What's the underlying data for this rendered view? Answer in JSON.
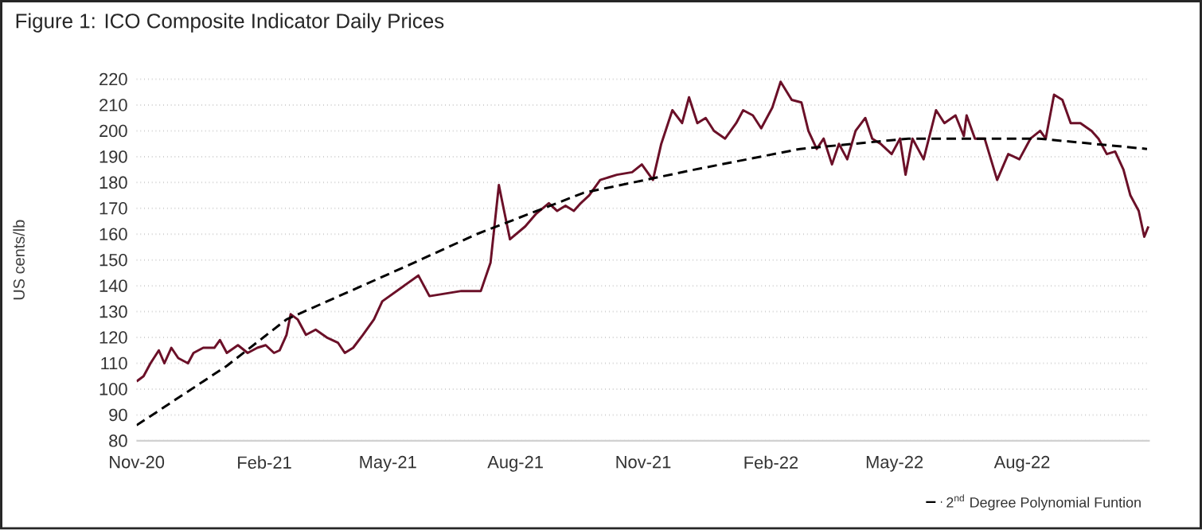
{
  "chart_data": {
    "type": "line",
    "title": "Figure 1: ICO Composite Indicator Daily Prices",
    "ylabel": "US cents/lb",
    "xlim": [
      "2020-11-01",
      "2022-11-01"
    ],
    "xticks": [
      {
        "value": "2020-11-01",
        "label": "Nov-20"
      },
      {
        "value": "2021-02-01",
        "label": "Feb-21"
      },
      {
        "value": "2021-05-01",
        "label": "May-21"
      },
      {
        "value": "2021-08-01",
        "label": "Aug-21"
      },
      {
        "value": "2021-11-01",
        "label": "Nov-21"
      },
      {
        "value": "2022-02-01",
        "label": "Feb-22"
      },
      {
        "value": "2022-05-01",
        "label": "May-22"
      },
      {
        "value": "2022-08-01",
        "label": "Aug-22"
      }
    ],
    "ylim": [
      80,
      220
    ],
    "yticks": [
      80,
      90,
      100,
      110,
      120,
      130,
      140,
      150,
      160,
      170,
      180,
      190,
      200,
      210,
      220
    ],
    "grid": "y",
    "legend": "bottom right",
    "series": [
      {
        "color": "#6b1028",
        "line_style": "solid",
        "x": [
          "2020-11-01",
          "2020-11-06",
          "2020-11-11",
          "2020-11-17",
          "2020-11-21",
          "2020-11-26",
          "2020-12-01",
          "2020-12-08",
          "2020-12-12",
          "2020-12-19",
          "2020-12-27",
          "2020-12-31",
          "2021-01-05",
          "2021-01-13",
          "2021-01-20",
          "2021-01-27",
          "2021-02-02",
          "2021-02-08",
          "2021-02-12",
          "2021-02-17",
          "2021-02-20",
          "2021-02-25",
          "2021-03-03",
          "2021-03-10",
          "2021-03-18",
          "2021-03-26",
          "2021-03-31",
          "2021-04-06",
          "2021-04-13",
          "2021-04-21",
          "2021-04-27",
          "2021-05-23",
          "2021-05-31",
          "2021-06-23",
          "2021-07-07",
          "2021-07-14",
          "2021-07-20",
          "2021-07-23",
          "2021-07-28",
          "2021-08-08",
          "2021-08-16",
          "2021-08-25",
          "2021-08-31",
          "2021-09-06",
          "2021-09-12",
          "2021-09-17",
          "2021-09-23",
          "2021-10-01",
          "2021-10-13",
          "2021-10-24",
          "2021-10-31",
          "2021-11-08",
          "2021-11-14",
          "2021-11-22",
          "2021-11-29",
          "2021-12-04",
          "2021-12-10",
          "2021-12-16",
          "2021-12-22",
          "2021-12-30",
          "2022-01-07",
          "2022-01-12",
          "2022-01-19",
          "2022-01-25",
          "2022-02-02",
          "2022-02-08",
          "2022-02-16",
          "2022-02-23",
          "2022-02-28",
          "2022-03-06",
          "2022-03-11",
          "2022-03-17",
          "2022-03-22",
          "2022-03-28",
          "2022-04-03",
          "2022-04-10",
          "2022-04-15",
          "2022-04-21",
          "2022-04-29",
          "2022-05-05",
          "2022-05-09",
          "2022-05-14",
          "2022-05-22",
          "2022-05-31",
          "2022-06-06",
          "2022-06-14",
          "2022-06-20",
          "2022-06-22",
          "2022-06-28",
          "2022-07-05",
          "2022-07-14",
          "2022-07-22",
          "2022-07-30",
          "2022-08-07",
          "2022-08-14",
          "2022-08-18",
          "2022-08-24",
          "2022-08-30",
          "2022-09-05",
          "2022-09-12",
          "2022-09-20",
          "2022-09-25",
          "2022-10-01",
          "2022-10-07",
          "2022-10-13",
          "2022-10-18",
          "2022-10-24",
          "2022-10-28",
          "2022-10-31"
        ],
        "values": [
          103,
          105,
          110,
          115,
          110,
          116,
          112,
          110,
          114,
          116,
          116,
          119,
          114,
          117,
          114,
          116,
          117,
          114,
          115,
          121,
          129,
          127,
          121,
          123,
          120,
          118,
          114,
          116,
          121,
          127,
          134,
          144,
          136,
          138,
          138,
          149,
          179,
          171,
          158,
          163,
          168,
          172,
          169,
          171,
          169,
          172,
          175,
          181,
          183,
          184,
          187,
          181,
          195,
          208,
          203,
          213,
          203,
          205,
          200,
          197,
          203,
          208,
          206,
          201,
          209,
          219,
          212,
          211,
          200,
          193,
          197,
          187,
          195,
          189,
          200,
          205,
          197,
          195,
          191,
          197,
          183,
          197,
          189,
          208,
          203,
          206,
          198,
          206,
          197,
          197,
          181,
          191,
          189,
          197,
          200,
          197,
          214,
          212,
          203,
          203,
          200,
          197,
          191,
          192,
          185,
          175,
          169,
          159,
          163
        ]
      },
      {
        "name": "2$^{nd}$ Degree Polynomial Funtion",
        "color": "#000000",
        "line_style": "dashed",
        "x": [
          "2020-11-01",
          "2021-01-05",
          "2021-02-17",
          "2021-05-16",
          "2021-07-04",
          "2021-09-19",
          "2021-12-08",
          "2022-02-22",
          "2022-05-11",
          "2022-08-13",
          "2022-10-30"
        ],
        "values": [
          86,
          109,
          127,
          148,
          160,
          176,
          185,
          193,
          197,
          197,
          193
        ]
      }
    ]
  }
}
